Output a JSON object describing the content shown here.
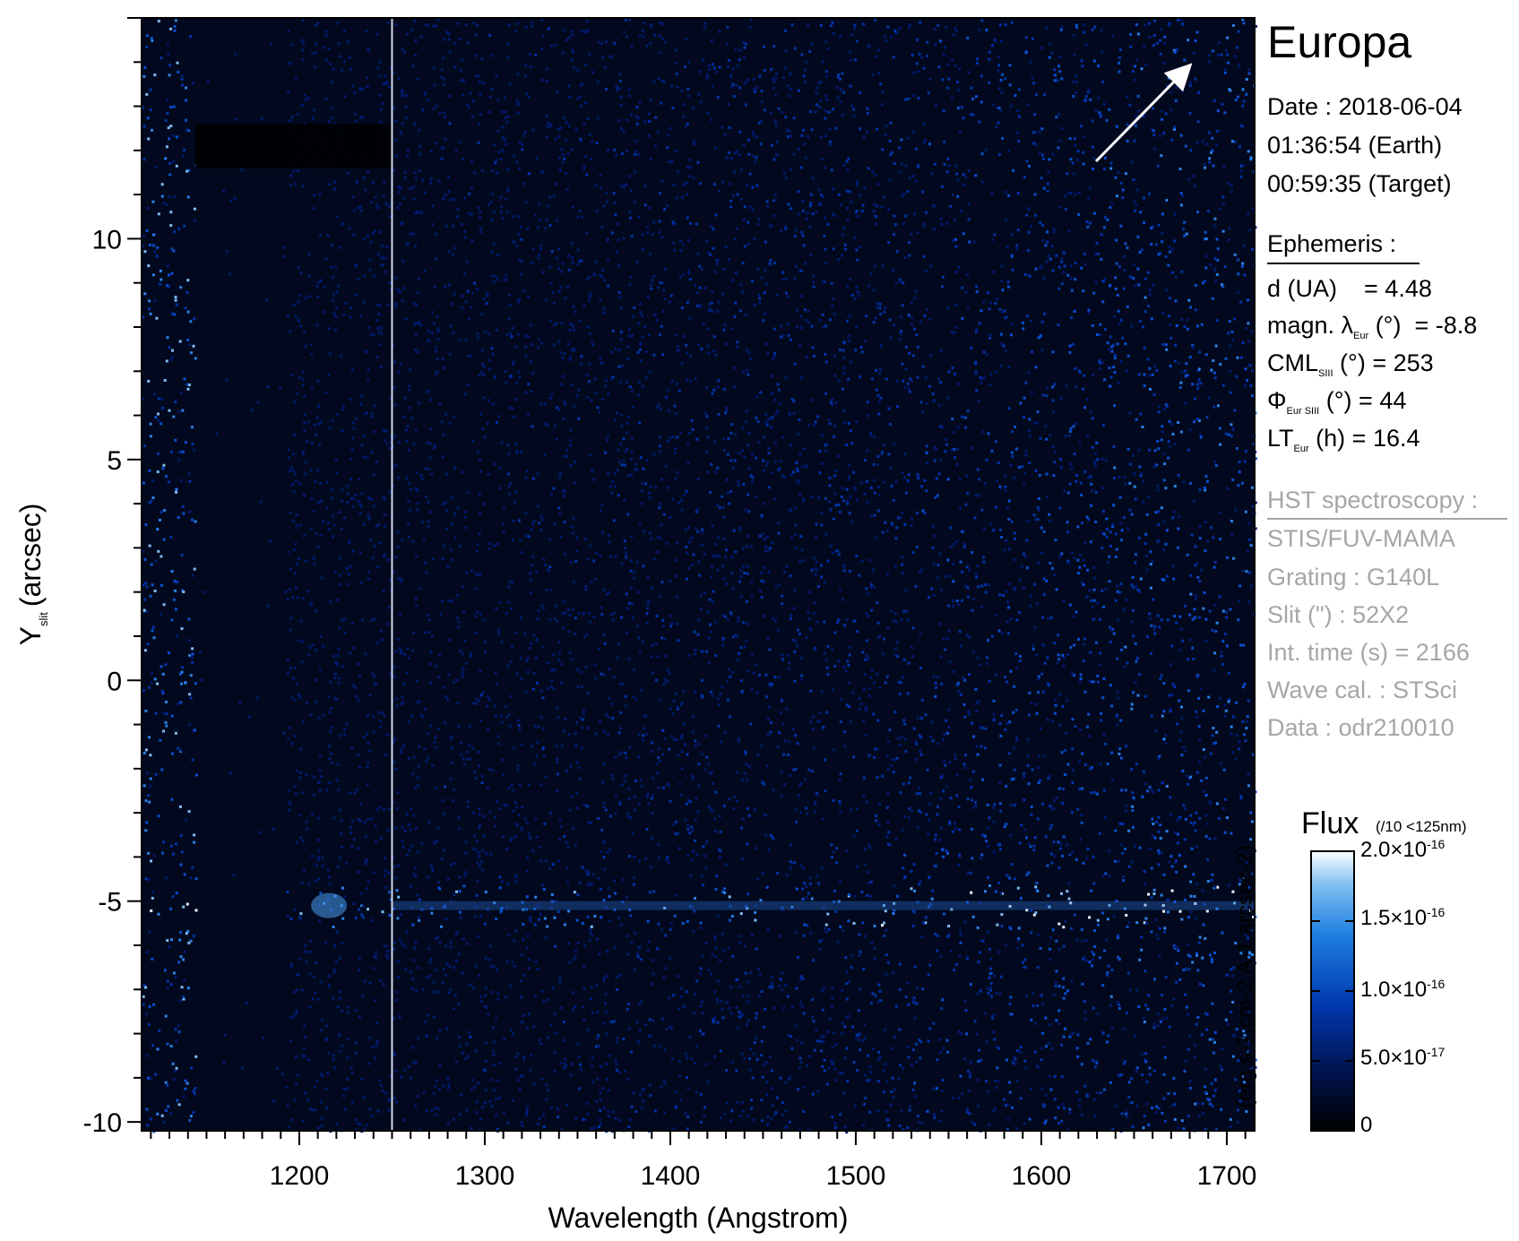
{
  "chart_data": {
    "type": "heatmap",
    "title": "",
    "xlabel": "Wavelength (Angstrom)",
    "ylabel_main": "Y",
    "ylabel_sub": "slit",
    "ylabel_unit": "(arcsec)",
    "xlim": [
      1115,
      1715
    ],
    "ylim": [
      -10.2,
      15
    ],
    "x_ticks": [
      1200,
      1300,
      1400,
      1500,
      1600,
      1700
    ],
    "x_tick_labels": [
      "1200",
      "1300",
      "1400",
      "1500",
      "1600",
      "1700"
    ],
    "y_ticks": [
      -10,
      -5,
      0,
      5,
      10
    ],
    "y_tick_labels": [
      "-10",
      "-5",
      "0",
      "5",
      "10"
    ],
    "features": {
      "bright_line_y": -5.1,
      "lyman_alpha_wavelength": 1216,
      "gap_band": [
        1144,
        1193
      ],
      "vertical_separator_wavelength": 1250,
      "dark_stripe_y": [
        11.6,
        12.6
      ]
    },
    "colorbar": {
      "min": 0,
      "max": 2e-16,
      "ticks": [
        0,
        5e-17,
        1e-16,
        1.5e-16,
        2e-16
      ],
      "colors": [
        "#000000",
        "#00124a",
        "#0038b0",
        "#1e7ee0",
        "#7fbff2",
        "#ffffff"
      ]
    },
    "arrow_direction": "upper-right"
  },
  "panel": {
    "target": "Europa",
    "date_line": "Date : 2018-06-04",
    "earth_time": "01:36:54 (Earth)",
    "target_time": "00:59:35 (Target)",
    "ephemeris_header": "Ephemeris :",
    "d_label": "d (UA)",
    "d_value": "= 4.48",
    "magn_label": "magn. λ",
    "magn_sub": "Eur",
    "magn_unit": "(°)",
    "magn_value": "= -8.8",
    "cml_label": "CML",
    "cml_sub": "SIII",
    "cml_unit": "(°)",
    "cml_value": "= 253",
    "phi_label": "Φ",
    "phi_sub": "Eur SIII",
    "phi_unit": "(°)",
    "phi_value": "= 44",
    "lt_label": "LT",
    "lt_sub": "Eur",
    "lt_unit": "(h)",
    "lt_value": "= 16.4",
    "hst_header": "HST spectroscopy :",
    "instrument": "STIS/FUV-MAMA",
    "grating": "Grating : G140L",
    "slit": "Slit (\") : 52X2",
    "int_time": "Int. time (s) = 2166",
    "wave_cal": "Wave cal. : STSci",
    "data_id": "Data : odr210010"
  },
  "colorbar_labels": {
    "title": "Flux",
    "note": "(/10 <125nm)",
    "unit": "(erg.s-1.cm-2.A-1.arcsec-2)",
    "tick_0": "0",
    "tick_5e17_base": "5.0×10",
    "tick_5e17_exp": "-17",
    "tick_1e16_base": "1.0×10",
    "tick_1e16_exp": "-16",
    "tick_15e16_base": "1.5×10",
    "tick_15e16_exp": "-16",
    "tick_2e16_base": "2.0×10",
    "tick_2e16_exp": "-16"
  }
}
